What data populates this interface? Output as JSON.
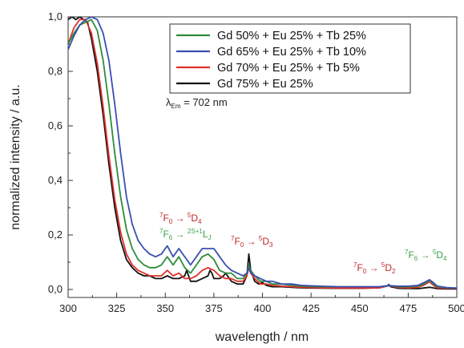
{
  "colors": {
    "green": "#2e8b3a",
    "blue": "#3a4fb0",
    "red": "#e0302a",
    "black": "#111111",
    "annotation_red": "#c0262b",
    "annotation_green": "#3aa04a"
  },
  "chart_data": {
    "type": "line",
    "xlabel": "wavelength / nm",
    "ylabel": "normalized intensity / a.u.",
    "xlim": [
      300,
      500
    ],
    "ylim": [
      -0.05,
      1.0
    ],
    "x_ticks": [
      "300",
      "325",
      "350",
      "375",
      "400",
      "425",
      "450",
      "475",
      "500"
    ],
    "y_ticks": [
      "0,0",
      "0,2",
      "0,4",
      "0,6",
      "0,8",
      "1,0"
    ],
    "legend_position": "top-right",
    "excitation_label": {
      "prefix": "λ",
      "sub": "Em",
      "suffix": " = 702 nm"
    },
    "annotations": {
      "a1": {
        "left": "F",
        "left_sup": "7",
        "left_sub": "0",
        "arrow": "→",
        "right": "D",
        "right_sup": "5",
        "right_sub": "4"
      },
      "a2": {
        "left": "F",
        "left_sup": "7",
        "left_sub": "6",
        "arrow": "→",
        "right": "L",
        "right_sup": "2S+1",
        "right_sub": "J"
      },
      "a3": {
        "left": "F",
        "left_sup": "7",
        "left_sub": "0",
        "arrow": "→",
        "right": "D",
        "right_sup": "5",
        "right_sub": "3"
      },
      "a4": {
        "left": "F",
        "left_sup": "7",
        "left_sub": "0",
        "arrow": "→",
        "right": "D",
        "right_sup": "5",
        "right_sub": "2"
      },
      "a5": {
        "left": "F",
        "left_sup": "7",
        "left_sub": "6",
        "arrow": "→",
        "right": "D",
        "right_sup": "5",
        "right_sub": "4"
      }
    },
    "series": [
      {
        "name": "Gd 50% + Eu 25% + Tb 25%",
        "color": "#2e8b3a",
        "x": [
          300,
          303,
          306,
          309,
          312,
          315,
          318,
          321,
          324,
          327,
          330,
          333,
          336,
          339,
          342,
          345,
          348,
          351,
          354,
          357,
          360,
          363,
          366,
          369,
          372,
          375,
          378,
          381,
          384,
          387,
          390,
          392,
          393,
          394,
          396,
          399,
          402,
          405,
          410,
          415,
          420,
          430,
          440,
          450,
          460,
          465,
          470,
          475,
          480,
          483,
          486,
          488,
          490,
          495,
          500
        ],
        "y": [
          0.9,
          0.94,
          0.97,
          0.98,
          0.99,
          0.95,
          0.84,
          0.68,
          0.5,
          0.34,
          0.22,
          0.15,
          0.11,
          0.09,
          0.08,
          0.08,
          0.09,
          0.12,
          0.09,
          0.12,
          0.08,
          0.06,
          0.09,
          0.12,
          0.13,
          0.11,
          0.07,
          0.06,
          0.06,
          0.04,
          0.04,
          0.06,
          0.09,
          0.07,
          0.05,
          0.03,
          0.03,
          0.02,
          0.02,
          0.015,
          0.012,
          0.01,
          0.01,
          0.01,
          0.01,
          0.014,
          0.01,
          0.01,
          0.012,
          0.02,
          0.034,
          0.02,
          0.01,
          0.006,
          0.005
        ]
      },
      {
        "name": "Gd 65% + Eu 25% + Tb 10%",
        "color": "#3a4fb0",
        "x": [
          300,
          303,
          306,
          309,
          312,
          315,
          318,
          321,
          324,
          327,
          330,
          333,
          336,
          339,
          342,
          345,
          348,
          351,
          354,
          357,
          360,
          363,
          366,
          369,
          372,
          375,
          378,
          381,
          384,
          387,
          390,
          392,
          393,
          394,
          396,
          399,
          402,
          405,
          410,
          415,
          420,
          430,
          440,
          450,
          460,
          465,
          470,
          475,
          480,
          483,
          486,
          488,
          490,
          495,
          500
        ],
        "y": [
          0.88,
          0.93,
          0.97,
          0.99,
          1.0,
          0.99,
          0.94,
          0.84,
          0.68,
          0.5,
          0.34,
          0.24,
          0.18,
          0.15,
          0.13,
          0.12,
          0.13,
          0.16,
          0.12,
          0.15,
          0.12,
          0.09,
          0.12,
          0.15,
          0.15,
          0.15,
          0.12,
          0.09,
          0.07,
          0.06,
          0.05,
          0.06,
          0.08,
          0.06,
          0.05,
          0.04,
          0.03,
          0.03,
          0.02,
          0.02,
          0.015,
          0.012,
          0.01,
          0.01,
          0.01,
          0.014,
          0.012,
          0.012,
          0.015,
          0.025,
          0.036,
          0.025,
          0.012,
          0.007,
          0.005
        ]
      },
      {
        "name": "Gd 70% + Eu 25% + Tb 5%",
        "color": "#e0302a",
        "x": [
          300,
          303,
          306,
          309,
          312,
          315,
          318,
          321,
          324,
          327,
          330,
          333,
          336,
          339,
          342,
          345,
          348,
          351,
          354,
          357,
          360,
          363,
          366,
          369,
          372,
          375,
          378,
          381,
          384,
          387,
          390,
          392,
          393,
          394,
          396,
          399,
          402,
          405,
          410,
          415,
          420,
          430,
          440,
          450,
          460,
          465,
          470,
          475,
          480,
          483,
          486,
          488,
          490,
          495,
          500
        ],
        "y": [
          0.9,
          0.96,
          0.99,
          0.99,
          0.94,
          0.83,
          0.67,
          0.49,
          0.33,
          0.21,
          0.13,
          0.09,
          0.07,
          0.06,
          0.05,
          0.05,
          0.05,
          0.07,
          0.05,
          0.06,
          0.04,
          0.04,
          0.05,
          0.07,
          0.08,
          0.07,
          0.05,
          0.04,
          0.04,
          0.03,
          0.03,
          0.05,
          0.08,
          0.06,
          0.04,
          0.02,
          0.02,
          0.015,
          0.012,
          0.01,
          0.008,
          0.006,
          0.005,
          0.005,
          0.006,
          0.014,
          0.007,
          0.006,
          0.008,
          0.016,
          0.028,
          0.015,
          0.006,
          0.004,
          0.004
        ]
      },
      {
        "name": "Gd 75% + Eu 25%",
        "color": "#111111",
        "x": [
          300,
          302,
          304,
          306,
          308,
          310,
          312,
          315,
          318,
          321,
          324,
          327,
          330,
          333,
          336,
          339,
          342,
          345,
          348,
          351,
          354,
          357,
          360,
          361,
          362,
          363,
          366,
          369,
          372,
          373,
          374,
          375,
          378,
          380,
          381,
          382,
          384,
          387,
          390,
          392,
          393,
          394,
          396,
          398,
          400,
          402,
          405,
          410,
          415,
          420,
          430,
          440,
          450,
          460,
          464,
          465,
          466,
          470,
          480,
          486,
          490,
          495,
          500
        ],
        "y": [
          0.99,
          1.0,
          0.99,
          1.0,
          0.99,
          0.98,
          0.92,
          0.8,
          0.64,
          0.46,
          0.3,
          0.18,
          0.11,
          0.08,
          0.06,
          0.05,
          0.05,
          0.04,
          0.04,
          0.05,
          0.04,
          0.04,
          0.05,
          0.07,
          0.05,
          0.03,
          0.03,
          0.04,
          0.05,
          0.07,
          0.06,
          0.04,
          0.04,
          0.05,
          0.06,
          0.05,
          0.03,
          0.02,
          0.02,
          0.05,
          0.13,
          0.07,
          0.03,
          0.02,
          0.025,
          0.015,
          0.01,
          0.01,
          0.008,
          0.006,
          0.005,
          0.004,
          0.004,
          0.006,
          0.012,
          0.018,
          0.01,
          0.004,
          0.003,
          0.008,
          0.003,
          0.002,
          0.002
        ]
      }
    ]
  }
}
